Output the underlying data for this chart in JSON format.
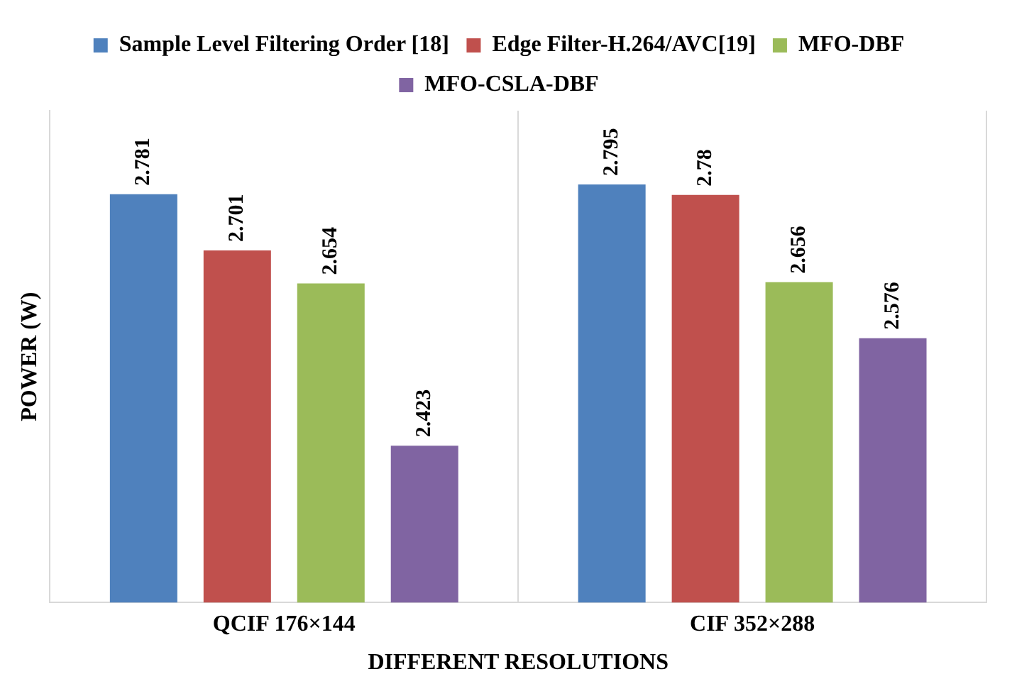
{
  "chart_data": {
    "type": "bar",
    "xlabel": "DIFFERENT RESOLUTIONS",
    "ylabel": "POWER (W)",
    "categories": [
      "QCIF 176×144",
      "CIF 352×288"
    ],
    "series": [
      {
        "name": "Sample Level Filtering Order [18]",
        "color": "#4f81bd",
        "values": [
          2.781,
          2.795
        ]
      },
      {
        "name": "Edge Filter-H.264/AVC[19]",
        "color": "#c0504d",
        "values": [
          2.701,
          2.78
        ]
      },
      {
        "name": "MFO-DBF",
        "color": "#9bbb59",
        "values": [
          2.654,
          2.656
        ]
      },
      {
        "name": "MFO-CSLA-DBF",
        "color": "#8064a2",
        "values": [
          2.423,
          2.576
        ]
      }
    ],
    "ylim": [
      2.2,
      2.9
    ],
    "tick_labels": "x",
    "grid": "x",
    "legend": "top",
    "data_labels": true
  }
}
